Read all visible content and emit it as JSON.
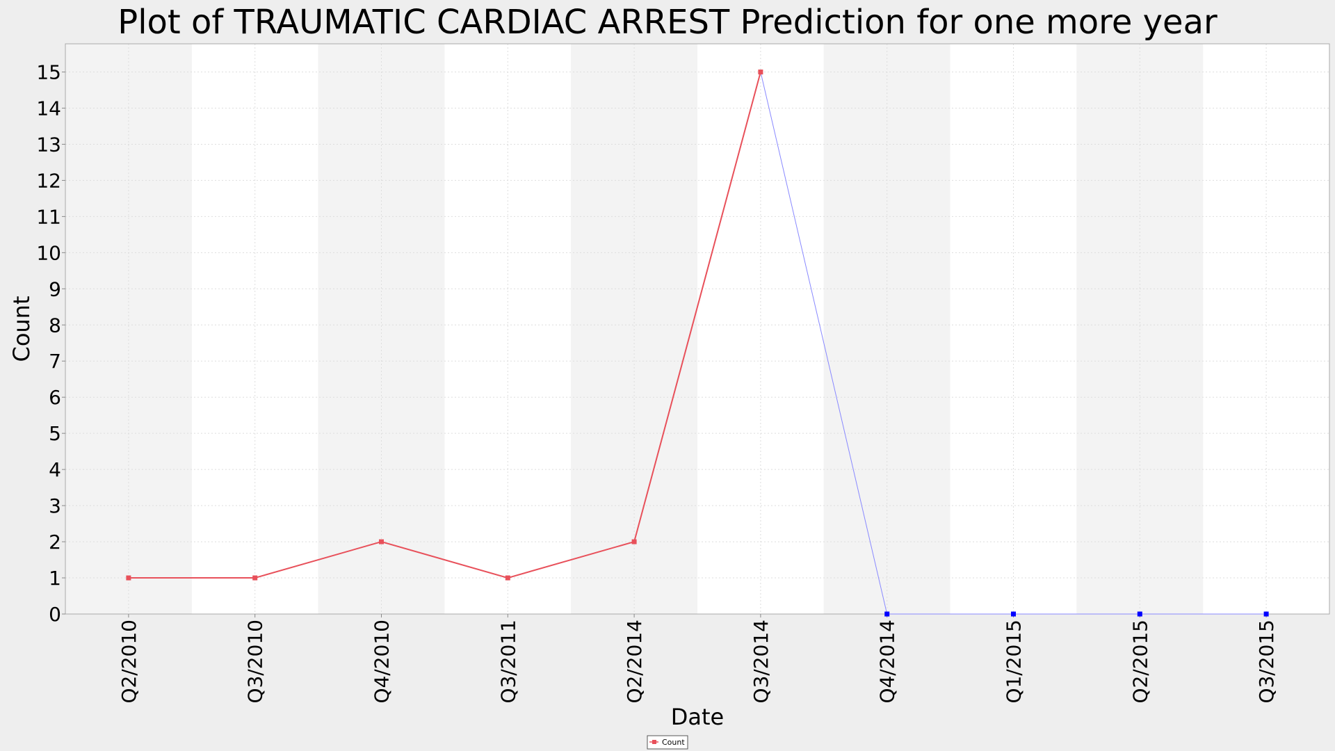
{
  "chart_data": {
    "type": "line",
    "title": "Plot of TRAUMATIC CARDIAC ARREST Prediction for one more year",
    "xlabel": "Date",
    "ylabel": "Count",
    "categories": [
      "Q2/2010",
      "Q3/2010",
      "Q4/2010",
      "Q3/2011",
      "Q2/2014",
      "Q3/2014",
      "Q4/2014",
      "Q1/2015",
      "Q2/2015",
      "Q3/2015"
    ],
    "ylim": [
      0,
      15
    ],
    "yticks": [
      "0",
      "1",
      "2",
      "3",
      "4",
      "5",
      "6",
      "7",
      "8",
      "9",
      "10",
      "11",
      "12",
      "13",
      "14",
      "15"
    ],
    "grid": true,
    "legend_position": "bottom-center",
    "series": [
      {
        "name": "Count",
        "color": "#e8505a",
        "values": [
          1,
          1,
          2,
          1,
          2,
          15,
          null,
          null,
          null,
          null
        ]
      },
      {
        "color": "#0000ff",
        "line_color": "#8888ff",
        "values": [
          null,
          null,
          null,
          null,
          null,
          15,
          0,
          0,
          0,
          0
        ]
      }
    ]
  }
}
